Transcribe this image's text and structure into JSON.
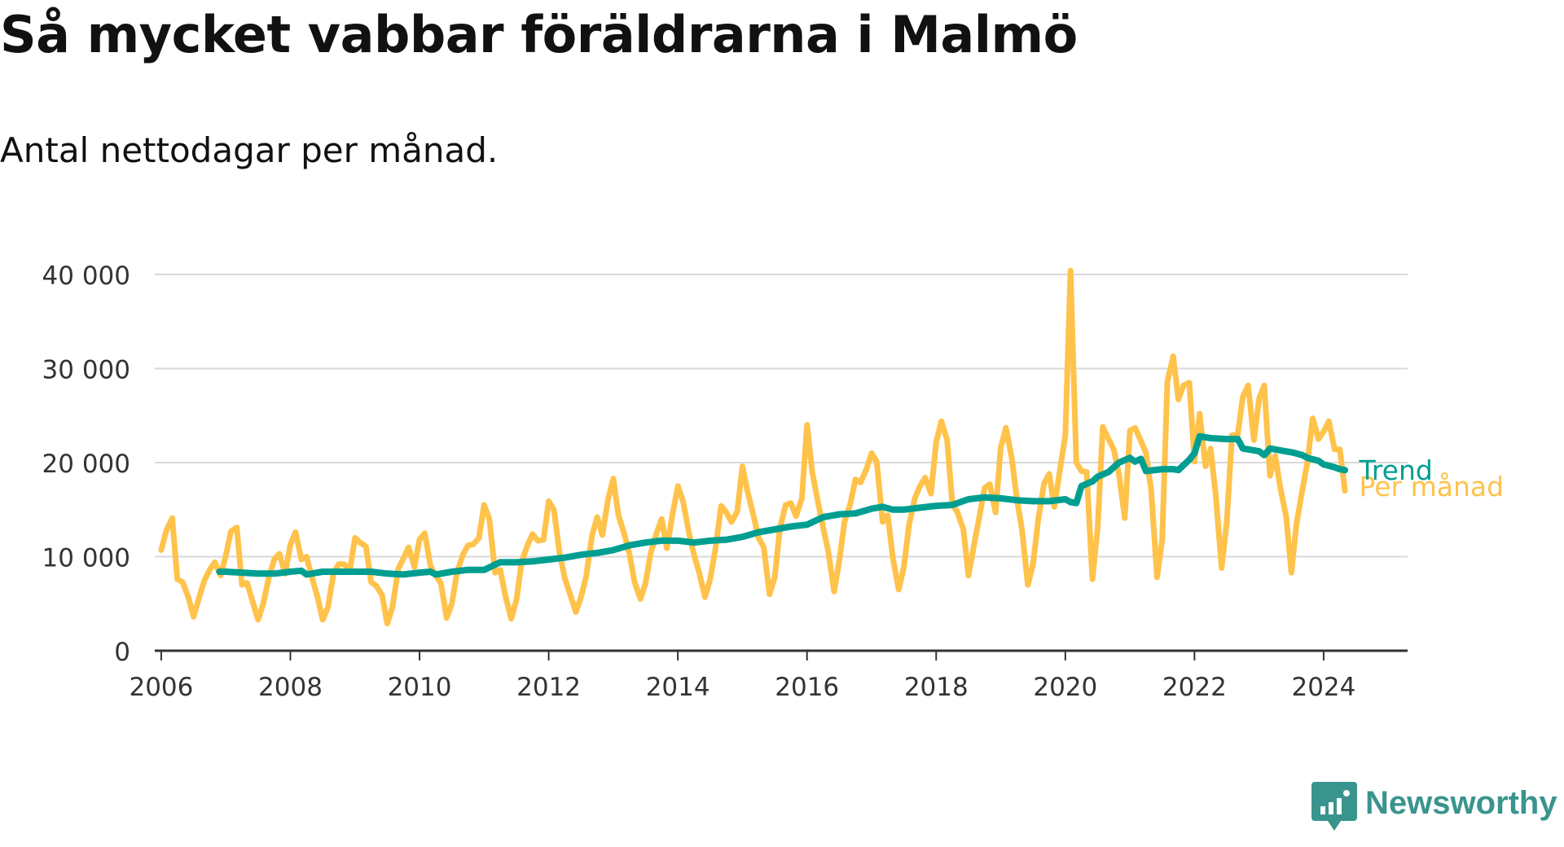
{
  "title": "Så mycket vabbar föräldrarna i Malmö",
  "subtitle": "Antal nettodagar per månad.",
  "brand": {
    "name": "Newsworthy",
    "icon": "newsworthy-logo-icon",
    "color": "#3a948e"
  },
  "chart_data": {
    "type": "line",
    "ylim": [
      0,
      40000
    ],
    "xlim": [
      2005.9,
      2025.3
    ],
    "y_ticks": [
      {
        "value": 0,
        "label": "0"
      },
      {
        "value": 10000,
        "label": "10 000"
      },
      {
        "value": 20000,
        "label": "20 000"
      },
      {
        "value": 30000,
        "label": "30 000"
      },
      {
        "value": 40000,
        "label": "40 000"
      }
    ],
    "x_ticks": [
      {
        "value": 2006,
        "label": "2006"
      },
      {
        "value": 2008,
        "label": "2008"
      },
      {
        "value": 2010,
        "label": "2010"
      },
      {
        "value": 2012,
        "label": "2012"
      },
      {
        "value": 2014,
        "label": "2014"
      },
      {
        "value": 2016,
        "label": "2016"
      },
      {
        "value": 2018,
        "label": "2018"
      },
      {
        "value": 2020,
        "label": "2020"
      },
      {
        "value": 2022,
        "label": "2022"
      },
      {
        "value": 2024,
        "label": "2024"
      }
    ],
    "grid": true,
    "series": [
      {
        "name": "Per månad",
        "color": "#ffc24b",
        "x": [
          2006.0,
          2006.08,
          2006.17,
          2006.25,
          2006.33,
          2006.42,
          2006.5,
          2006.58,
          2006.67,
          2006.75,
          2006.83,
          2006.92,
          2007.0,
          2007.08,
          2007.17,
          2007.25,
          2007.33,
          2007.42,
          2007.5,
          2007.58,
          2007.67,
          2007.75,
          2007.83,
          2007.92,
          2008.0,
          2008.08,
          2008.17,
          2008.25,
          2008.33,
          2008.42,
          2008.5,
          2008.58,
          2008.67,
          2008.75,
          2008.83,
          2008.92,
          2009.0,
          2009.08,
          2009.17,
          2009.25,
          2009.33,
          2009.42,
          2009.5,
          2009.58,
          2009.67,
          2009.75,
          2009.83,
          2009.92,
          2010.0,
          2010.08,
          2010.17,
          2010.25,
          2010.33,
          2010.42,
          2010.5,
          2010.58,
          2010.67,
          2010.75,
          2010.83,
          2010.92,
          2011.0,
          2011.08,
          2011.17,
          2011.25,
          2011.33,
          2011.42,
          2011.5,
          2011.58,
          2011.67,
          2011.75,
          2011.83,
          2011.92,
          2012.0,
          2012.08,
          2012.17,
          2012.25,
          2012.33,
          2012.42,
          2012.5,
          2012.58,
          2012.67,
          2012.75,
          2012.83,
          2012.92,
          2013.0,
          2013.08,
          2013.17,
          2013.25,
          2013.33,
          2013.42,
          2013.5,
          2013.58,
          2013.67,
          2013.75,
          2013.83,
          2013.92,
          2014.0,
          2014.08,
          2014.17,
          2014.25,
          2014.33,
          2014.42,
          2014.5,
          2014.58,
          2014.67,
          2014.75,
          2014.83,
          2014.92,
          2015.0,
          2015.08,
          2015.17,
          2015.25,
          2015.33,
          2015.42,
          2015.5,
          2015.58,
          2015.67,
          2015.75,
          2015.83,
          2015.92,
          2016.0,
          2016.08,
          2016.17,
          2016.25,
          2016.33,
          2016.42,
          2016.5,
          2016.58,
          2016.67,
          2016.75,
          2016.83,
          2016.92,
          2017.0,
          2017.08,
          2017.17,
          2017.25,
          2017.33,
          2017.42,
          2017.5,
          2017.58,
          2017.67,
          2017.75,
          2017.83,
          2017.92,
          2018.0,
          2018.08,
          2018.17,
          2018.25,
          2018.33,
          2018.42,
          2018.5,
          2018.58,
          2018.67,
          2018.75,
          2018.83,
          2018.92,
          2019.0,
          2019.08,
          2019.17,
          2019.25,
          2019.33,
          2019.42,
          2019.5,
          2019.58,
          2019.67,
          2019.75,
          2019.83,
          2019.92,
          2020.0,
          2020.08,
          2020.17,
          2020.25,
          2020.33,
          2020.42,
          2020.5,
          2020.58,
          2020.67,
          2020.75,
          2020.83,
          2020.92,
          2021.0,
          2021.08,
          2021.17,
          2021.25,
          2021.33,
          2021.42,
          2021.5,
          2021.58,
          2021.67,
          2021.75,
          2021.83,
          2021.92,
          2022.0,
          2022.08,
          2022.17,
          2022.25,
          2022.33,
          2022.42,
          2022.5,
          2022.58,
          2022.67,
          2022.75,
          2022.83,
          2022.92,
          2023.0,
          2023.08,
          2023.17,
          2023.25,
          2023.33,
          2023.42,
          2023.5,
          2023.58,
          2023.67,
          2023.75,
          2023.83,
          2023.92,
          2024.0,
          2024.08,
          2024.17,
          2024.25,
          2024.33
        ],
        "y": [
          10700,
          12800,
          14100,
          7600,
          7300,
          5700,
          3600,
          5500,
          7500,
          8600,
          9400,
          8000,
          10100,
          12700,
          13100,
          7000,
          7200,
          5100,
          3300,
          5000,
          7900,
          9700,
          10300,
          8200,
          11300,
          12600,
          9700,
          10000,
          7900,
          5700,
          3300,
          4600,
          8300,
          9200,
          9200,
          8500,
          12000,
          11500,
          11100,
          7300,
          6900,
          5900,
          2900,
          4600,
          8700,
          9800,
          11000,
          8900,
          11800,
          12500,
          9000,
          8000,
          7200,
          3500,
          5000,
          8300,
          10200,
          11200,
          11300,
          12000,
          15500,
          14000,
          8300,
          8600,
          5800,
          3400,
          5400,
          9400,
          11200,
          12400,
          11700,
          11800,
          15900,
          15000,
          10300,
          7700,
          6000,
          4100,
          5700,
          7900,
          12200,
          14200,
          12300,
          16100,
          18300,
          14400,
          12400,
          10300,
          7300,
          5500,
          7200,
          10400,
          12500,
          14000,
          10900,
          14600,
          17500,
          15900,
          12600,
          10200,
          8300,
          5700,
          7600,
          10700,
          15400,
          14700,
          13700,
          14800,
          19600,
          16900,
          14400,
          12000,
          11000,
          6000,
          7800,
          13000,
          15500,
          15700,
          14300,
          16200,
          24000,
          19000,
          15800,
          13100,
          10500,
          6300,
          9600,
          13700,
          15600,
          18200,
          17900,
          19300,
          21000,
          20100,
          13700,
          14400,
          9800,
          6500,
          8900,
          13400,
          16200,
          17500,
          18400,
          16700,
          22200,
          24400,
          22400,
          15600,
          14700,
          12900,
          8000,
          11000,
          14300,
          17300,
          17700,
          14700,
          21600,
          23700,
          20500,
          16100,
          12800,
          7000,
          9200,
          13900,
          17800,
          18800,
          15300,
          19400,
          22900,
          40400,
          20000,
          19100,
          19000,
          7600,
          13100,
          23800,
          22500,
          21400,
          18800,
          14100,
          23400,
          23700,
          22300,
          21000,
          17000,
          7800,
          11800,
          28600,
          31300,
          26700,
          28200,
          28500,
          20100,
          25200,
          19600,
          21500,
          16500,
          8800,
          13700,
          22900,
          23000,
          27000,
          28200,
          22400,
          26800,
          28200,
          18600,
          20700,
          17300,
          14200,
          8300,
          13500,
          17100,
          20100,
          24700,
          22500,
          23300,
          24400,
          21400,
          21400,
          17000
        ],
        "label_x": 2024.55,
        "label_y": 17500
      },
      {
        "name": "Trend",
        "color": "#009e91",
        "x": [
          2006.9,
          2007.0,
          2007.25,
          2007.5,
          2007.75,
          2008.0,
          2008.17,
          2008.25,
          2008.5,
          2008.75,
          2009.0,
          2009.25,
          2009.5,
          2009.75,
          2010.0,
          2010.17,
          2010.25,
          2010.5,
          2010.75,
          2011.0,
          2011.25,
          2011.5,
          2011.75,
          2012.0,
          2012.25,
          2012.5,
          2012.75,
          2013.0,
          2013.25,
          2013.5,
          2013.75,
          2014.0,
          2014.25,
          2014.5,
          2014.75,
          2015.0,
          2015.25,
          2015.5,
          2015.75,
          2016.0,
          2016.25,
          2016.5,
          2016.75,
          2017.0,
          2017.17,
          2017.33,
          2017.5,
          2017.75,
          2018.0,
          2018.25,
          2018.5,
          2018.75,
          2019.0,
          2019.25,
          2019.5,
          2019.75,
          2020.0,
          2020.08,
          2020.17,
          2020.25,
          2020.42,
          2020.5,
          2020.67,
          2020.83,
          2021.0,
          2021.08,
          2021.17,
          2021.25,
          2021.5,
          2021.67,
          2021.75,
          2021.92,
          2022.0,
          2022.08,
          2022.25,
          2022.5,
          2022.67,
          2022.75,
          2023.0,
          2023.08,
          2023.17,
          2023.33,
          2023.5,
          2023.67,
          2023.75,
          2023.92,
          2024.0,
          2024.17,
          2024.25,
          2024.33
        ],
        "y": [
          8400,
          8400,
          8300,
          8200,
          8200,
          8400,
          8500,
          8100,
          8400,
          8400,
          8400,
          8400,
          8200,
          8100,
          8300,
          8400,
          8100,
          8400,
          8600,
          8600,
          9400,
          9400,
          9500,
          9700,
          9900,
          10200,
          10400,
          10700,
          11200,
          11500,
          11700,
          11700,
          11500,
          11700,
          11800,
          12100,
          12600,
          12900,
          13200,
          13400,
          14200,
          14500,
          14600,
          15100,
          15300,
          15000,
          15000,
          15200,
          15400,
          15500,
          16100,
          16300,
          16200,
          16000,
          15900,
          15900,
          16100,
          15800,
          15700,
          17500,
          18000,
          18500,
          19000,
          20000,
          20500,
          20100,
          20400,
          19100,
          19300,
          19300,
          19200,
          20300,
          21000,
          22800,
          22600,
          22500,
          22500,
          21500,
          21200,
          20800,
          21500,
          21300,
          21100,
          20800,
          20500,
          20200,
          19800,
          19500,
          19300,
          19200
        ],
        "label_x": 2024.55,
        "label_y": 19200
      }
    ]
  }
}
